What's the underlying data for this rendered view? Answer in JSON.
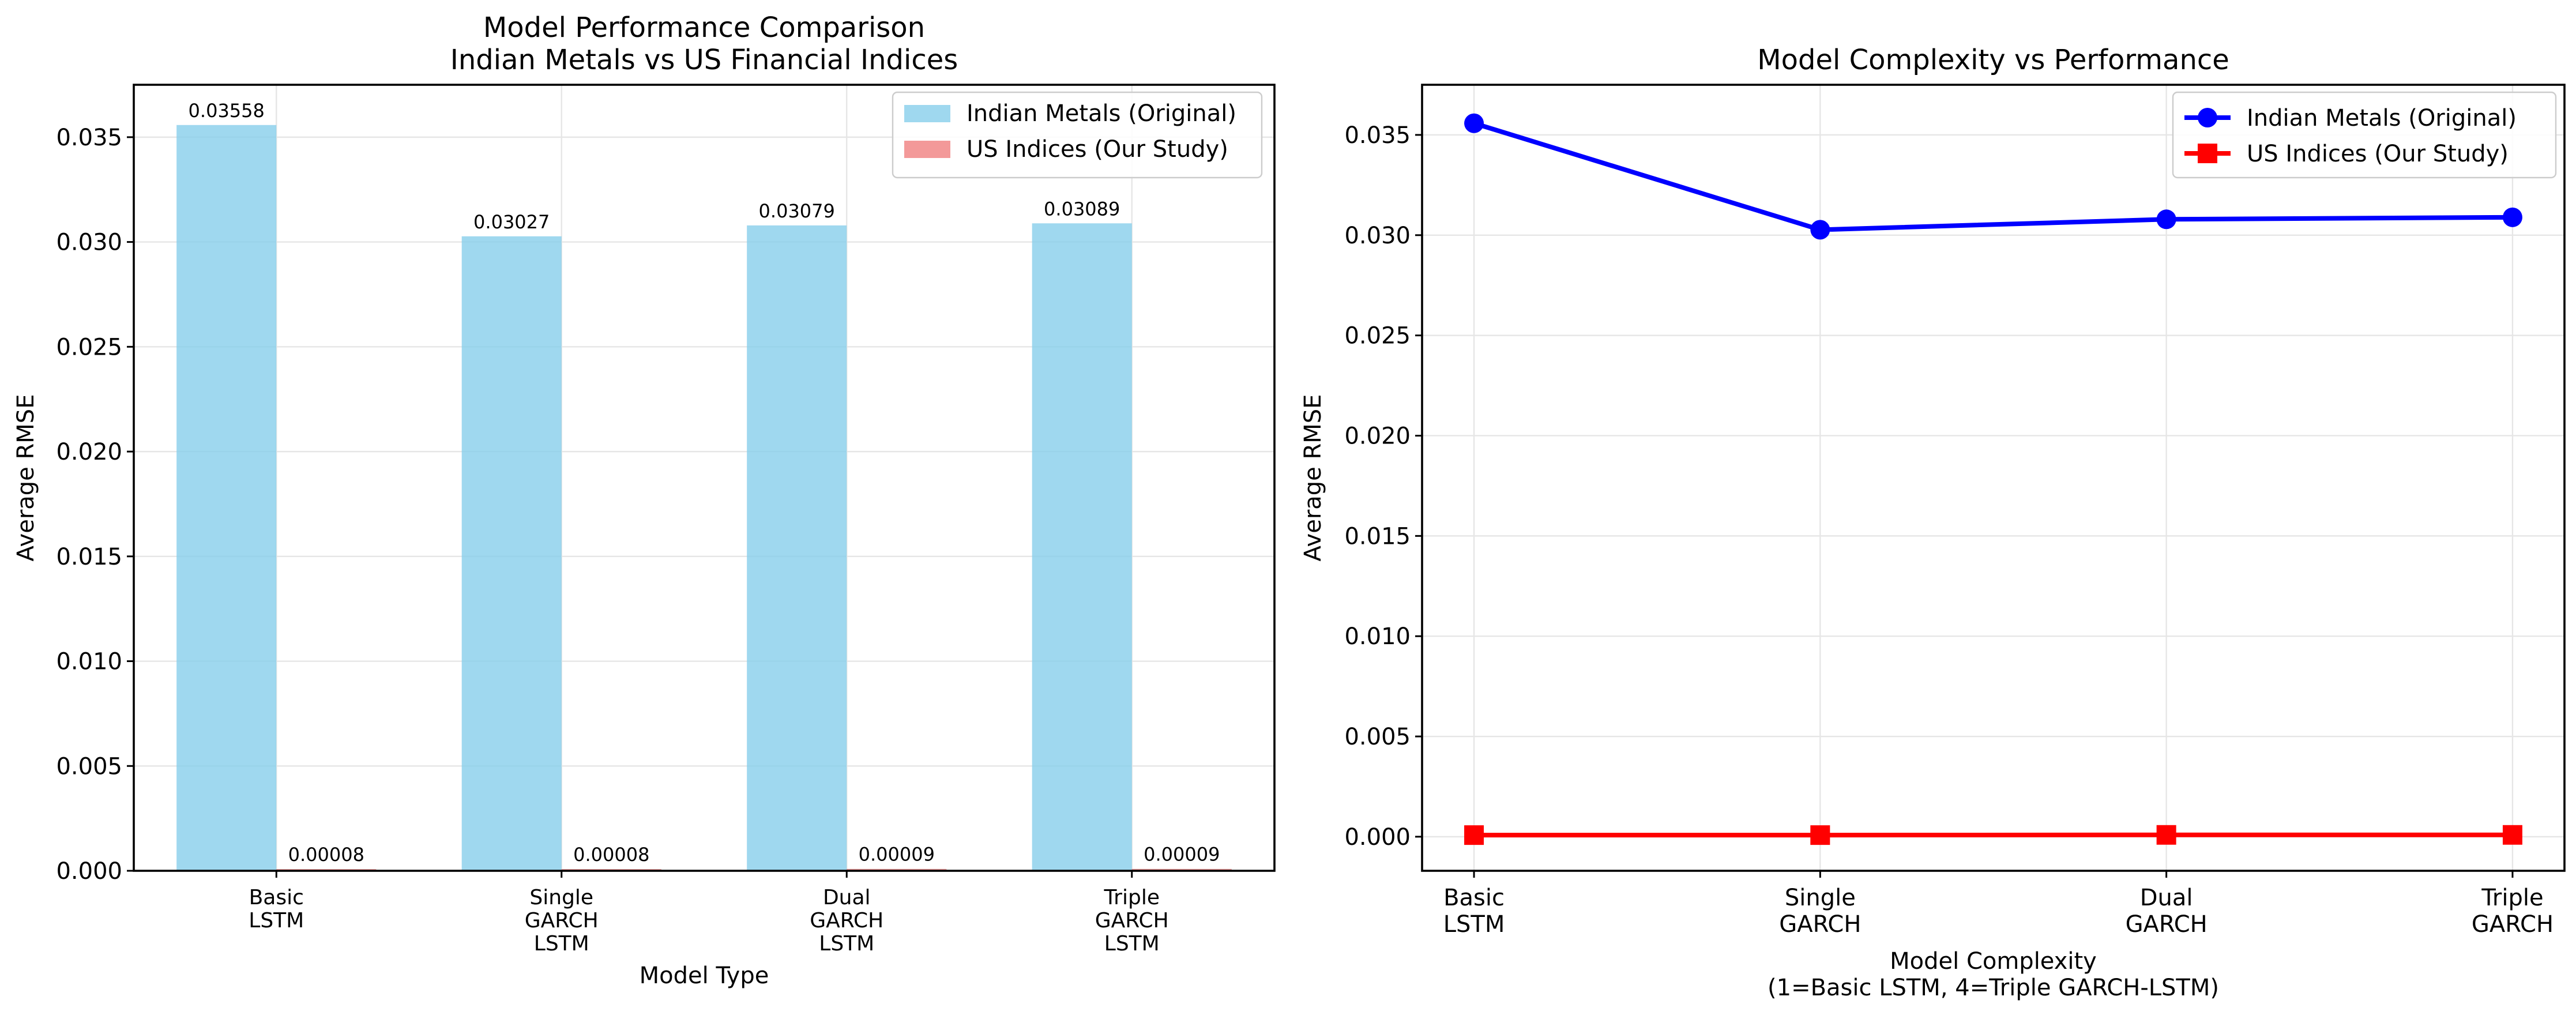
{
  "chart_data": [
    {
      "type": "bar",
      "title": [
        "Model Performance Comparison",
        "Indian Metals vs US Financial Indices"
      ],
      "xlabel": "Model Type",
      "ylabel": "Average RMSE",
      "ylim": [
        0,
        0.0375
      ],
      "yticks": [
        "0.000",
        "0.005",
        "0.010",
        "0.015",
        "0.020",
        "0.025",
        "0.030",
        "0.035"
      ],
      "categories": [
        [
          "Basic",
          "LSTM"
        ],
        [
          "Single",
          "GARCH",
          "LSTM"
        ],
        [
          "Dual",
          "GARCH",
          "LSTM"
        ],
        [
          "Triple",
          "GARCH",
          "LSTM"
        ]
      ],
      "series": [
        {
          "name": "Indian Metals (Original)",
          "color": "#87ceeb",
          "values": [
            0.03558,
            0.03027,
            0.03079,
            0.03089
          ],
          "labels": [
            "0.03558",
            "0.03027",
            "0.03079",
            "0.03089"
          ]
        },
        {
          "name": "US Indices (Our Study)",
          "color": "#f08080",
          "values": [
            8e-05,
            8e-05,
            9e-05,
            9e-05
          ],
          "labels": [
            "0.00008",
            "0.00008",
            "0.00009",
            "0.00009"
          ]
        }
      ],
      "grid": true,
      "legend": "top-right"
    },
    {
      "type": "line",
      "title": [
        "Model Complexity vs Performance"
      ],
      "xlabel": [
        "Model Complexity",
        "(1=Basic LSTM, 4=Triple GARCH-LSTM)"
      ],
      "ylabel": "Average RMSE",
      "xlim": [
        0.85,
        4.15
      ],
      "ylim": [
        -0.0017,
        0.0375
      ],
      "x": [
        1,
        2,
        3,
        4
      ],
      "xticklabels": [
        [
          "Basic",
          "LSTM"
        ],
        [
          "Single",
          "GARCH"
        ],
        [
          "Dual",
          "GARCH"
        ],
        [
          "Triple",
          "GARCH"
        ]
      ],
      "yticks": [
        "0.000",
        "0.005",
        "0.010",
        "0.015",
        "0.020",
        "0.025",
        "0.030",
        "0.035"
      ],
      "series": [
        {
          "name": "Indian Metals (Original)",
          "color": "#0000ff",
          "marker": "circle",
          "values": [
            0.03558,
            0.03027,
            0.03079,
            0.03089
          ]
        },
        {
          "name": "US Indices (Our Study)",
          "color": "#ff0000",
          "marker": "square",
          "values": [
            8e-05,
            8e-05,
            9e-05,
            9e-05
          ]
        }
      ],
      "grid": true,
      "legend": "top-right"
    }
  ]
}
